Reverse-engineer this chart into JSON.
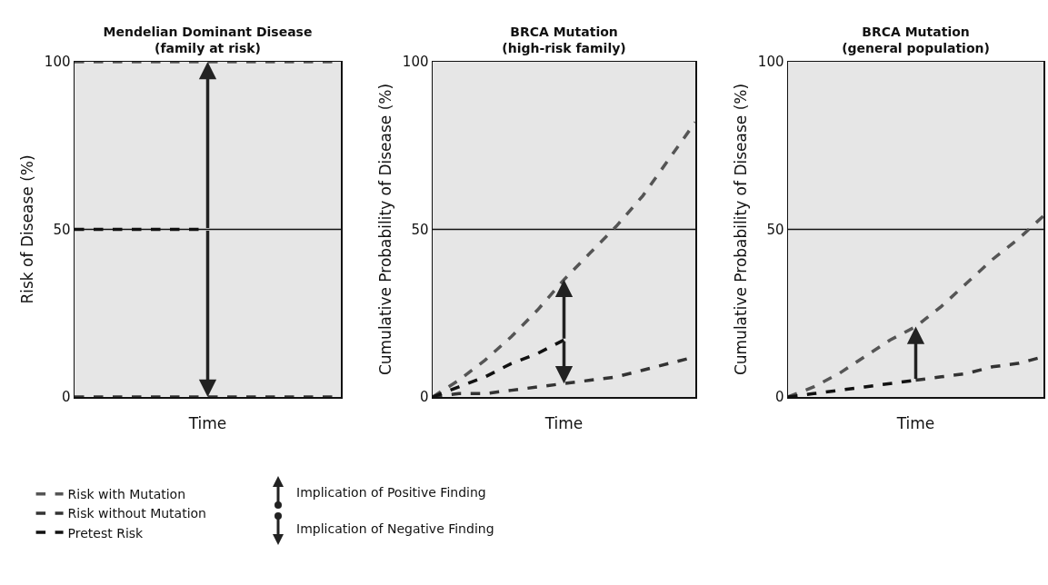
{
  "chart_data": [
    {
      "type": "line",
      "title": "Mendelian Dominant Disease\n(family at risk)",
      "xlabel": "Time",
      "ylabel": "Risk of Disease (%)",
      "categories": [
        null,
        null,
        null,
        null,
        null,
        null,
        null,
        null,
        null,
        null,
        null
      ],
      "ylim": [
        0,
        100
      ],
      "yticks": [
        0,
        50,
        100
      ],
      "tick_labels": "y",
      "grid": false,
      "legend": "bottom left",
      "marker": "none",
      "line_style": "dashed",
      "annotations": [
        "Implication of Positive Finding",
        "Implication of Negative Finding"
      ],
      "ref_lines": [
        {
          "axis": "y",
          "value": 50,
          "color": "#111111",
          "line_style": "solid"
        }
      ],
      "series": [
        {
          "name": "Risk with Mutation",
          "color": "#555555",
          "values": [
            100,
            100,
            100,
            100,
            100,
            100,
            100,
            100,
            100,
            100,
            100
          ]
        },
        {
          "name": "Risk without Mutation",
          "color": "#333333",
          "values": [
            0,
            0,
            0,
            0,
            0,
            0,
            0,
            0,
            0,
            0,
            0
          ]
        },
        {
          "name": "Pretest Risk",
          "color": "#111111",
          "values": [
            50,
            50,
            50,
            50,
            50,
            50,
            null,
            null,
            null,
            null,
            null
          ]
        }
      ]
    },
    {
      "type": "line",
      "title": "BRCA Mutation\n(high-risk family)",
      "xlabel": "Time",
      "ylabel": "Cumulative Probability of Disease (%)",
      "categories": [
        null,
        null,
        null,
        null,
        null,
        null,
        null,
        null,
        null,
        null,
        null
      ],
      "ylim": [
        0,
        100
      ],
      "yticks": [
        0,
        50,
        100
      ],
      "tick_labels": "y",
      "grid": false,
      "legend": false,
      "marker": "none",
      "line_style": "dashed",
      "ref_lines": [
        {
          "axis": "y",
          "value": 50,
          "color": "#111111",
          "line_style": "solid"
        }
      ],
      "series": [
        {
          "color": "#555555",
          "values": [
            0,
            5,
            11,
            18,
            26,
            35,
            43,
            51,
            60,
            71,
            82
          ]
        },
        {
          "color": "#333333",
          "values": [
            0,
            1,
            1,
            2,
            3,
            4,
            5,
            6,
            8,
            10,
            12
          ]
        },
        {
          "color": "#111111",
          "values": [
            0,
            3,
            6,
            10,
            13,
            17,
            null,
            null,
            null,
            null,
            null
          ]
        }
      ]
    },
    {
      "type": "line",
      "title": "BRCA Mutation\n(general population)",
      "xlabel": "Time",
      "ylabel": "Cumulative Probability of Disease (%)",
      "categories": [
        null,
        null,
        null,
        null,
        null,
        null,
        null,
        null,
        null,
        null,
        null
      ],
      "ylim": [
        0,
        100
      ],
      "yticks": [
        0,
        50,
        100
      ],
      "tick_labels": "y",
      "grid": false,
      "legend": false,
      "marker": "none",
      "line_style": "dashed",
      "ref_lines": [
        {
          "axis": "y",
          "value": 50,
          "color": "#111111",
          "line_style": "solid"
        }
      ],
      "series": [
        {
          "color": "#555555",
          "values": [
            0,
            3,
            7,
            12,
            17,
            21,
            27,
            34,
            41,
            47,
            54
          ]
        },
        {
          "color": "#333333",
          "values": [
            null,
            null,
            null,
            null,
            null,
            5,
            6,
            7,
            9,
            10,
            12
          ]
        },
        {
          "color": "#111111",
          "values": [
            0,
            1,
            2,
            3,
            4,
            5,
            null,
            null,
            null,
            null,
            null
          ]
        }
      ]
    }
  ]
}
